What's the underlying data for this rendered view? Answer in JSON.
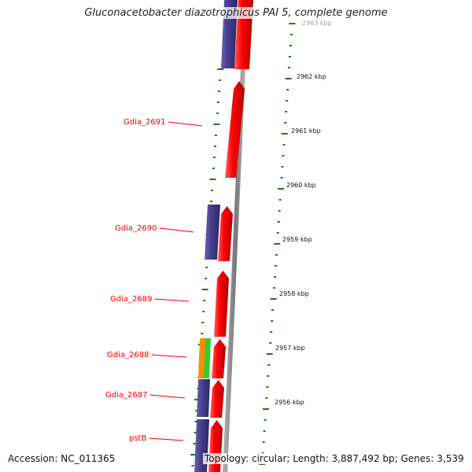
{
  "title": "Gluconacetobacter diazotrophicus PAI 5, complete genome",
  "footer": {
    "accession": "Accession: NC_011365",
    "topology": "Topology: circular; Length: 3,887,492 bp; Genes: 3,539"
  },
  "genes": [
    "Gdia_2691",
    "Gdia_2690",
    "Gdia_2689",
    "Gdia_2688",
    "Gdia_2687",
    "pstB"
  ],
  "kbp_labels": [
    "2963 kbp",
    "2962 kbp",
    "2961 kbp",
    "2960 kbp",
    "2959 kbp",
    "2958 kbp",
    "2957 kbp",
    "2956 kbp"
  ],
  "colors": {
    "forward": "#ff0000",
    "blast": "#4a3f8f",
    "orange": "#ff8c00",
    "green": "#33cc33",
    "tick": "#1a7a1a",
    "backbone": "#888888"
  }
}
